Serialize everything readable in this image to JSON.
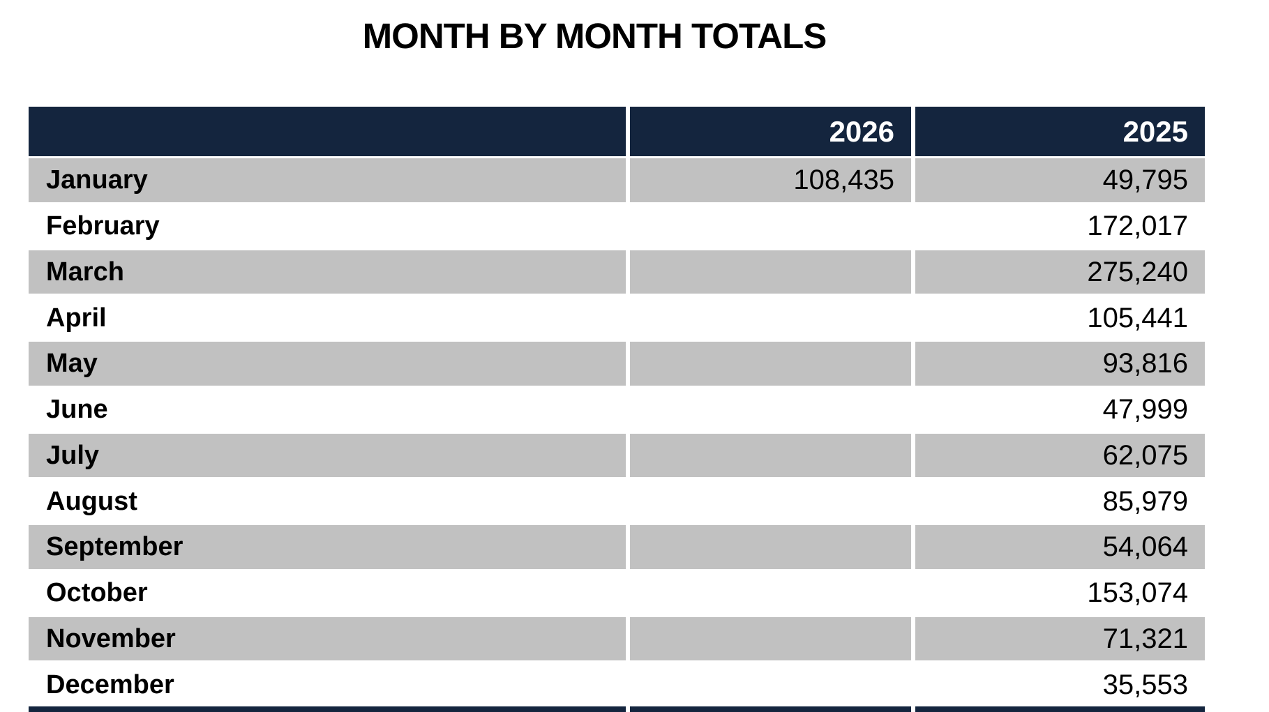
{
  "title": "MONTH BY MONTH TOTALS",
  "colors": {
    "header_bg": "#14253E",
    "header_text": "#FFFFFF",
    "row_shade_bg": "#C1C1C1",
    "row_plain_bg": "#FFFFFF",
    "body_text": "#000000"
  },
  "table": {
    "columns": [
      "",
      "2026",
      "2025"
    ],
    "rows": [
      {
        "month": "January",
        "y2026": "108,435",
        "y2025": "49,795"
      },
      {
        "month": "February",
        "y2026": "",
        "y2025": "172,017"
      },
      {
        "month": "March",
        "y2026": "",
        "y2025": "275,240"
      },
      {
        "month": "April",
        "y2026": "",
        "y2025": "105,441"
      },
      {
        "month": "May",
        "y2026": "",
        "y2025": "93,816"
      },
      {
        "month": "June",
        "y2026": "",
        "y2025": "47,999"
      },
      {
        "month": "July",
        "y2026": "",
        "y2025": "62,075"
      },
      {
        "month": "August",
        "y2026": "",
        "y2025": "85,979"
      },
      {
        "month": "September",
        "y2026": "",
        "y2025": "54,064"
      },
      {
        "month": "October",
        "y2026": "",
        "y2025": "153,074"
      },
      {
        "month": "November",
        "y2026": "",
        "y2025": "71,321"
      },
      {
        "month": "December",
        "y2026": "",
        "y2025": "35,553"
      }
    ]
  },
  "chart_data": {
    "type": "table",
    "title": "MONTH BY MONTH TOTALS",
    "categories": [
      "January",
      "February",
      "March",
      "April",
      "May",
      "June",
      "July",
      "August",
      "September",
      "October",
      "November",
      "December"
    ],
    "series": [
      {
        "name": "2026",
        "values": [
          108435,
          null,
          null,
          null,
          null,
          null,
          null,
          null,
          null,
          null,
          null,
          null
        ]
      },
      {
        "name": "2025",
        "values": [
          49795,
          172017,
          275240,
          105441,
          93816,
          47999,
          62075,
          85979,
          54064,
          153074,
          71321,
          35553
        ]
      }
    ],
    "legend_position": "none",
    "grid": false
  }
}
